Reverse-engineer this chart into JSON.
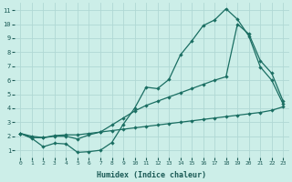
{
  "xlabel": "Humidex (Indice chaleur)",
  "xlim": [
    -0.5,
    23.5
  ],
  "ylim": [
    0.5,
    11.5
  ],
  "xticks": [
    0,
    1,
    2,
    3,
    4,
    5,
    6,
    7,
    8,
    9,
    10,
    11,
    12,
    13,
    14,
    15,
    16,
    17,
    18,
    19,
    20,
    21,
    22,
    23
  ],
  "yticks": [
    1,
    2,
    3,
    4,
    5,
    6,
    7,
    8,
    9,
    10,
    11
  ],
  "bg_color": "#cceee8",
  "grid_color": "#b0d8d4",
  "line_color": "#1a6e62",
  "line_a_x": [
    0,
    1,
    2,
    3,
    4,
    5,
    6,
    7,
    8,
    9,
    10,
    11,
    12,
    13,
    14,
    15,
    16,
    17,
    18,
    19,
    20,
    21,
    22,
    23
  ],
  "line_a_y": [
    2.2,
    1.85,
    1.25,
    1.5,
    1.45,
    0.85,
    0.9,
    1.0,
    1.55,
    2.85,
    4.0,
    5.5,
    5.4,
    6.05,
    7.8,
    8.8,
    9.9,
    10.3,
    11.1,
    10.35,
    9.15,
    6.95,
    6.0,
    4.3
  ],
  "line_b_x": [
    0,
    1,
    2,
    3,
    4,
    5,
    6,
    7,
    8,
    9,
    10,
    11,
    12,
    13,
    14,
    15,
    16,
    17,
    18,
    19,
    20,
    21,
    22,
    23
  ],
  "line_b_y": [
    2.2,
    1.9,
    1.9,
    2.0,
    2.0,
    1.8,
    2.1,
    2.3,
    2.8,
    3.3,
    3.8,
    4.2,
    4.5,
    4.8,
    5.1,
    5.4,
    5.7,
    6.0,
    6.25,
    10.0,
    9.3,
    7.4,
    6.5,
    4.5
  ],
  "line_c_x": [
    0,
    1,
    2,
    3,
    4,
    5,
    6,
    7,
    8,
    9,
    10,
    11,
    12,
    13,
    14,
    15,
    16,
    17,
    18,
    19,
    20,
    21,
    22,
    23
  ],
  "line_c_y": [
    2.2,
    2.0,
    1.9,
    2.05,
    2.1,
    2.1,
    2.2,
    2.3,
    2.4,
    2.5,
    2.6,
    2.7,
    2.8,
    2.9,
    3.0,
    3.1,
    3.2,
    3.3,
    3.4,
    3.5,
    3.6,
    3.7,
    3.85,
    4.1
  ]
}
